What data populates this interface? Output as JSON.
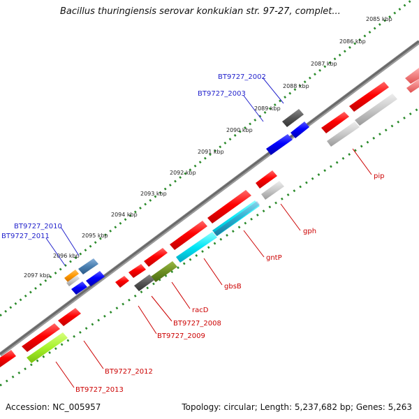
{
  "title": "Bacillus thuringiensis serovar konkukian str. 97-27, complet...",
  "footer": {
    "accession": "Accession: NC_005957",
    "topology": "Topology: circular; Length: 5,237,682 bp; Genes: 5,263"
  },
  "ticks": [
    "2085 kbp",
    "2086 kbp",
    "2087 kbp",
    "2088 kbp",
    "2089 kbp",
    "2090 kbp",
    "2091 kbp",
    "2092 kbp",
    "2093 kbp",
    "2094 kbp",
    "2095 kbp",
    "2096 kbp",
    "2097 kbp"
  ],
  "gene_labels": {
    "BT9727_2002": "BT9727_2002",
    "BT9727_2003": "BT9727_2003",
    "BT9727_2010": "BT9727_2010",
    "BT9727_2011": "BT9727_2011",
    "pip": "pip",
    "gph": "gph",
    "gntP": "gntP",
    "gbsB": "gbsB",
    "racD": "racD",
    "BT9727_2008": "BT9727_2008",
    "BT9727_2009": "BT9727_2009",
    "BT9727_2012": "BT9727_2012",
    "BT9727_2013": "BT9727_2013"
  },
  "colors": {
    "backbone": "#707070",
    "tick_ring": "#2a8a2a",
    "cds_forward": "#ff0000",
    "cds_reverse": "#0000ff",
    "label_forward": "#cc0000",
    "label_reverse": "#2222cc",
    "gray_feature": "#bbbbbb",
    "dark_feature": "#555555",
    "cyan_feature": "#00e0f0",
    "steel_feature": "#4a7fb0",
    "olive_feature": "#6b8e23",
    "lime_feature": "#a0f020",
    "orange_feature": "#ff9900"
  }
}
